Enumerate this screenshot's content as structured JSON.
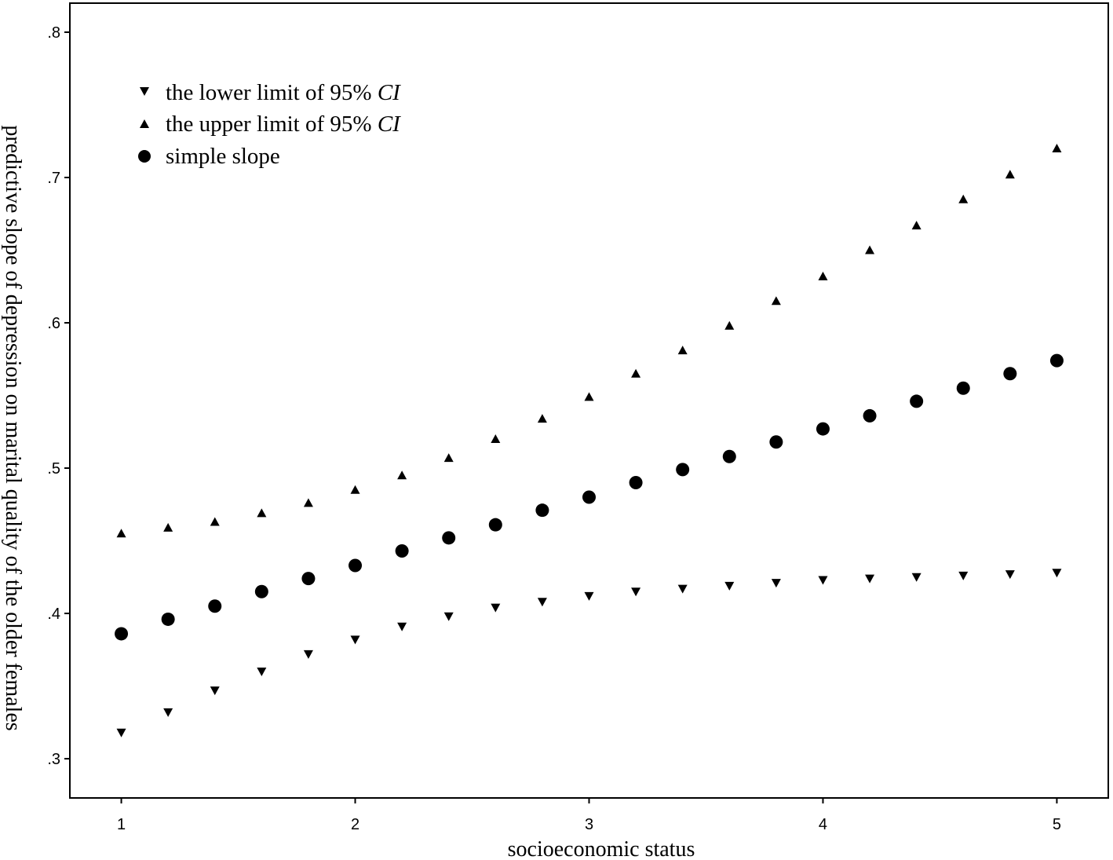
{
  "chart_data": {
    "type": "scatter",
    "xlabel": "socioeconomic status",
    "ylabel": "predictive slope of depression on marital quality of the older females",
    "xlim": [
      0.78,
      5.22
    ],
    "ylim": [
      0.273,
      0.82
    ],
    "xticks": [
      1,
      2,
      3,
      4,
      5
    ],
    "xtick_labels": [
      "1",
      "2",
      "3",
      "4",
      "5"
    ],
    "yticks": [
      0.3,
      0.4,
      0.5,
      0.6,
      0.7,
      0.8
    ],
    "ytick_labels": [
      ".3",
      ".4",
      ".5",
      ".6",
      ".7",
      ".8"
    ],
    "grid": false,
    "legend_position": "top-left",
    "x": [
      1.0,
      1.2,
      1.4,
      1.6,
      1.8,
      2.0,
      2.2,
      2.4,
      2.6,
      2.8,
      3.0,
      3.2,
      3.4,
      3.6,
      3.8,
      4.0,
      4.2,
      4.4,
      4.6,
      4.8,
      5.0
    ],
    "series": [
      {
        "name": "the lower limit of 95% ",
        "name_italic": "CI",
        "marker": "triangle-down",
        "values": [
          0.318,
          0.332,
          0.347,
          0.36,
          0.372,
          0.382,
          0.391,
          0.398,
          0.404,
          0.408,
          0.412,
          0.415,
          0.417,
          0.419,
          0.421,
          0.423,
          0.424,
          0.425,
          0.426,
          0.427,
          0.428
        ]
      },
      {
        "name": "the upper limit of 95% ",
        "name_italic": "CI",
        "marker": "triangle-up",
        "values": [
          0.455,
          0.459,
          0.463,
          0.469,
          0.476,
          0.485,
          0.495,
          0.507,
          0.52,
          0.534,
          0.549,
          0.565,
          0.581,
          0.598,
          0.615,
          0.632,
          0.65,
          0.667,
          0.685,
          0.702,
          0.72
        ]
      },
      {
        "name": "simple slope",
        "marker": "circle",
        "values": [
          0.386,
          0.396,
          0.405,
          0.415,
          0.424,
          0.433,
          0.443,
          0.452,
          0.461,
          0.471,
          0.48,
          0.49,
          0.499,
          0.508,
          0.518,
          0.527,
          0.536,
          0.546,
          0.555,
          0.565,
          0.574
        ]
      }
    ]
  }
}
